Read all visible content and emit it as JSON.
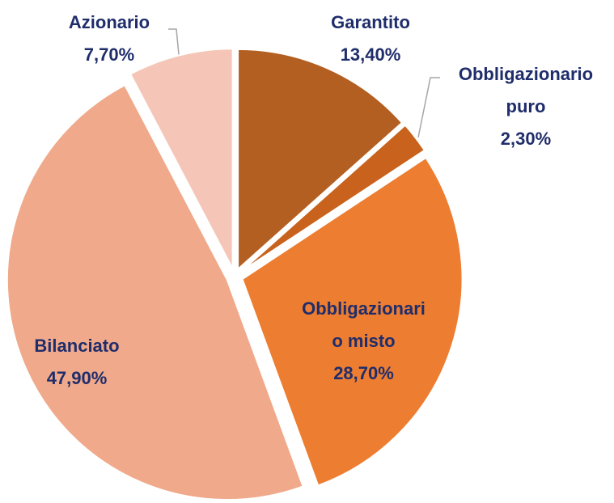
{
  "chart_data": {
    "type": "pie",
    "categories": [
      "Garantito",
      "Obbligazionario puro",
      "Obbligazionario misto",
      "Bilanciato",
      "Azionario"
    ],
    "values": [
      13.4,
      2.3,
      28.7,
      47.9,
      7.7
    ],
    "value_labels": [
      "13,40%",
      "2,30%",
      "28,70%",
      "47,90%",
      "7,70%"
    ],
    "colors": [
      "#b45f22",
      "#c8621c",
      "#ed7d31",
      "#f0a98a",
      "#f5c6b7"
    ]
  }
}
